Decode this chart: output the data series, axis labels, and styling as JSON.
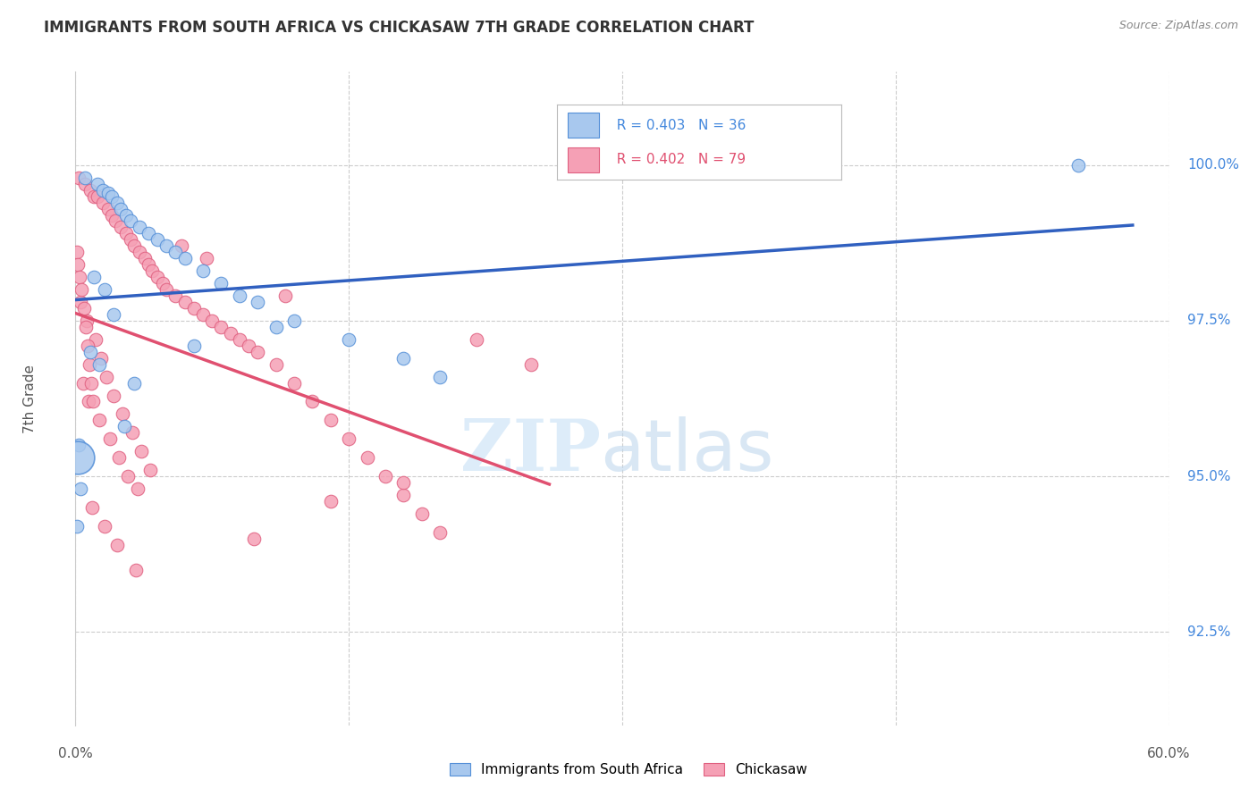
{
  "title": "IMMIGRANTS FROM SOUTH AFRICA VS CHICKASAW 7TH GRADE CORRELATION CHART",
  "source": "Source: ZipAtlas.com",
  "ylabel": "7th Grade",
  "yaxis_values": [
    92.5,
    95.0,
    97.5,
    100.0
  ],
  "xmin": 0.0,
  "xmax": 60.0,
  "ymin": 91.0,
  "ymax": 101.5,
  "legend_blue_r": "R = 0.403",
  "legend_blue_n": "N = 36",
  "legend_pink_r": "R = 0.402",
  "legend_pink_n": "N = 79",
  "blue_label": "Immigrants from South Africa",
  "pink_label": "Chickasaw",
  "blue_color": "#A8C8EE",
  "pink_color": "#F5A0B5",
  "blue_edge_color": "#5590D8",
  "pink_edge_color": "#E06080",
  "blue_line_color": "#3060C0",
  "pink_line_color": "#E05070",
  "blue_r_color": "#4488DD",
  "pink_r_color": "#E05070",
  "blue_scatter": [
    [
      0.5,
      99.8
    ],
    [
      1.2,
      99.7
    ],
    [
      1.5,
      99.6
    ],
    [
      1.8,
      99.55
    ],
    [
      2.0,
      99.5
    ],
    [
      2.3,
      99.4
    ],
    [
      2.5,
      99.3
    ],
    [
      2.8,
      99.2
    ],
    [
      3.0,
      99.1
    ],
    [
      3.5,
      99.0
    ],
    [
      4.0,
      98.9
    ],
    [
      4.5,
      98.8
    ],
    [
      5.0,
      98.7
    ],
    [
      5.5,
      98.6
    ],
    [
      6.0,
      98.5
    ],
    [
      7.0,
      98.3
    ],
    [
      8.0,
      98.1
    ],
    [
      9.0,
      97.9
    ],
    [
      10.0,
      97.8
    ],
    [
      12.0,
      97.5
    ],
    [
      15.0,
      97.2
    ],
    [
      18.0,
      96.9
    ],
    [
      20.0,
      96.6
    ],
    [
      0.2,
      95.5
    ],
    [
      0.3,
      94.8
    ],
    [
      1.0,
      98.2
    ],
    [
      1.6,
      98.0
    ],
    [
      2.1,
      97.6
    ],
    [
      0.8,
      97.0
    ],
    [
      1.3,
      96.8
    ],
    [
      3.2,
      96.5
    ],
    [
      6.5,
      97.1
    ],
    [
      0.1,
      94.2
    ],
    [
      2.7,
      95.8
    ],
    [
      11.0,
      97.4
    ],
    [
      55.0,
      100.0
    ]
  ],
  "blue_large_dot": [
    0.15,
    95.3
  ],
  "blue_large_size": 700,
  "pink_scatter": [
    [
      0.2,
      99.8
    ],
    [
      0.5,
      99.7
    ],
    [
      0.8,
      99.6
    ],
    [
      1.0,
      99.5
    ],
    [
      1.2,
      99.5
    ],
    [
      1.5,
      99.4
    ],
    [
      1.8,
      99.3
    ],
    [
      2.0,
      99.2
    ],
    [
      2.2,
      99.1
    ],
    [
      2.5,
      99.0
    ],
    [
      2.8,
      98.9
    ],
    [
      3.0,
      98.8
    ],
    [
      3.2,
      98.7
    ],
    [
      3.5,
      98.6
    ],
    [
      3.8,
      98.5
    ],
    [
      4.0,
      98.4
    ],
    [
      4.2,
      98.3
    ],
    [
      4.5,
      98.2
    ],
    [
      4.8,
      98.1
    ],
    [
      5.0,
      98.0
    ],
    [
      5.5,
      97.9
    ],
    [
      6.0,
      97.8
    ],
    [
      6.5,
      97.7
    ],
    [
      7.0,
      97.6
    ],
    [
      7.5,
      97.5
    ],
    [
      8.0,
      97.4
    ],
    [
      8.5,
      97.3
    ],
    [
      9.0,
      97.2
    ],
    [
      9.5,
      97.1
    ],
    [
      10.0,
      97.0
    ],
    [
      0.3,
      97.8
    ],
    [
      0.6,
      97.5
    ],
    [
      1.1,
      97.2
    ],
    [
      1.4,
      96.9
    ],
    [
      1.7,
      96.6
    ],
    [
      2.1,
      96.3
    ],
    [
      2.6,
      96.0
    ],
    [
      3.1,
      95.7
    ],
    [
      3.6,
      95.4
    ],
    [
      4.1,
      95.1
    ],
    [
      0.4,
      96.5
    ],
    [
      0.7,
      96.2
    ],
    [
      1.3,
      95.9
    ],
    [
      1.9,
      95.6
    ],
    [
      2.4,
      95.3
    ],
    [
      2.9,
      95.0
    ],
    [
      3.4,
      94.8
    ],
    [
      0.9,
      94.5
    ],
    [
      1.6,
      94.2
    ],
    [
      2.3,
      93.9
    ],
    [
      0.1,
      98.6
    ],
    [
      0.15,
      98.4
    ],
    [
      0.25,
      98.2
    ],
    [
      0.35,
      98.0
    ],
    [
      0.45,
      97.7
    ],
    [
      0.55,
      97.4
    ],
    [
      0.65,
      97.1
    ],
    [
      0.75,
      96.8
    ],
    [
      0.85,
      96.5
    ],
    [
      0.95,
      96.2
    ],
    [
      11.0,
      96.8
    ],
    [
      12.0,
      96.5
    ],
    [
      13.0,
      96.2
    ],
    [
      14.0,
      95.9
    ],
    [
      15.0,
      95.6
    ],
    [
      16.0,
      95.3
    ],
    [
      17.0,
      95.0
    ],
    [
      18.0,
      94.7
    ],
    [
      19.0,
      94.4
    ],
    [
      20.0,
      94.1
    ],
    [
      22.0,
      97.2
    ],
    [
      25.0,
      96.8
    ],
    [
      7.2,
      98.5
    ],
    [
      5.8,
      98.7
    ],
    [
      11.5,
      97.9
    ],
    [
      14.0,
      94.6
    ],
    [
      18.0,
      94.9
    ],
    [
      9.8,
      94.0
    ],
    [
      3.3,
      93.5
    ]
  ],
  "xgrid_values": [
    0,
    15,
    30,
    45,
    60
  ],
  "blue_trend_x": [
    0,
    58
  ],
  "pink_trend_x": [
    0,
    26
  ]
}
